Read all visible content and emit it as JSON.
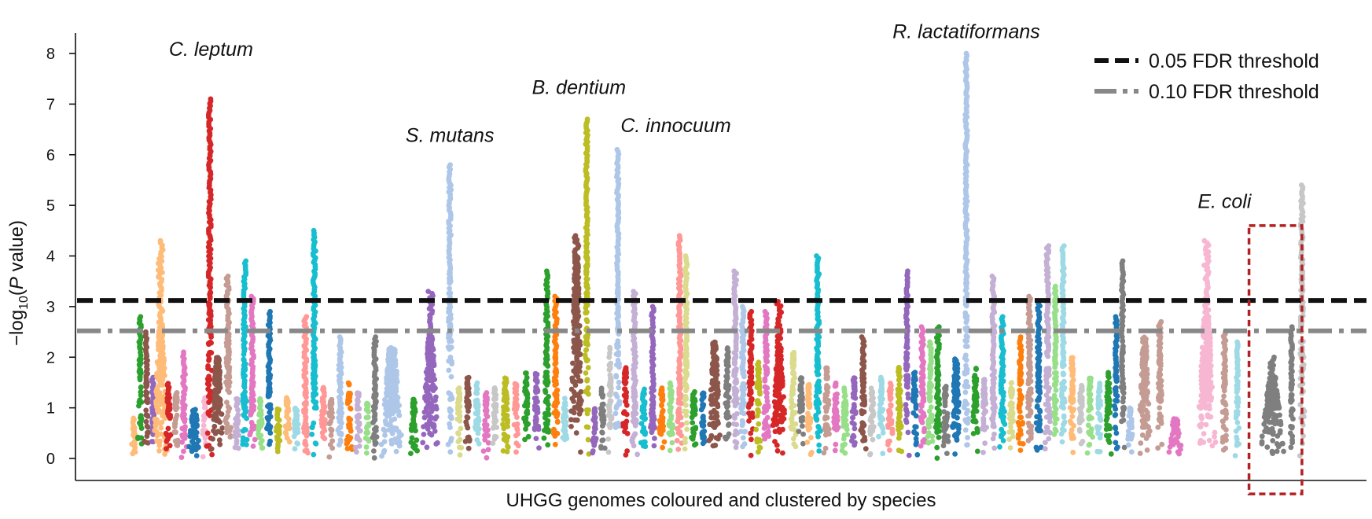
{
  "chart_data": {
    "type": "scatter",
    "subtype": "manhattan",
    "xlabel": "UHGG genomes coloured and clustered by species",
    "ylabel_main": "−log",
    "ylabel_sub": "10",
    "ylabel_open": "(",
    "ylabel_italic": "P",
    "ylabel_close": " value)",
    "ylim": [
      -0.4,
      8.4
    ],
    "yticks": [
      "0",
      "1",
      "2",
      "3",
      "4",
      "5",
      "6",
      "7",
      "8"
    ],
    "grid": false,
    "legend_position": "top-right",
    "thresholds": [
      {
        "name": "0.05 FDR threshold",
        "value": 3.12,
        "color": "#111111",
        "style": "dashed"
      },
      {
        "name": "0.10 FDR threshold",
        "value": 2.52,
        "color": "#888888",
        "style": "dashdot"
      }
    ],
    "highlight_box": {
      "species": "E. coli",
      "x_range": [
        0.909,
        0.95
      ],
      "y_range": [
        -0.7,
        4.6
      ],
      "color": "#b22222"
    },
    "annotations": [
      {
        "text": "C. leptum",
        "x": 0.105,
        "y": 7.95
      },
      {
        "text": "S. mutans",
        "x": 0.29,
        "y": 6.25
      },
      {
        "text": "B. dentium",
        "x": 0.39,
        "y": 7.2
      },
      {
        "text": "C. innocuum",
        "x": 0.465,
        "y": 6.45
      },
      {
        "text": "R. lactatiformans",
        "x": 0.69,
        "y": 8.3
      },
      {
        "text": "E. coli",
        "x": 0.89,
        "y": 4.95
      }
    ],
    "palette": [
      "#1f77b4",
      "#aec7e8",
      "#ff7f0e",
      "#ffbb78",
      "#2ca02c",
      "#98df8a",
      "#d62728",
      "#ff9896",
      "#9467bd",
      "#c5b0d5",
      "#8c564b",
      "#c49c94",
      "#e377c2",
      "#f7b6d2",
      "#7f7f7f",
      "#c7c7c7",
      "#bcbd22",
      "#dbdb8d",
      "#17becf",
      "#9edae5"
    ],
    "clusters": [
      {
        "x": 0.045,
        "w": 0.004,
        "base": 0.8,
        "peak": 0.8,
        "color": "#ffbb78"
      },
      {
        "x": 0.05,
        "w": 0.004,
        "base": 2.3,
        "peak": 2.8,
        "color": "#2ca02c"
      },
      {
        "x": 0.055,
        "w": 0.004,
        "base": 1.5,
        "peak": 2.5,
        "color": "#8c564b"
      },
      {
        "x": 0.06,
        "w": 0.004,
        "base": 1.2,
        "peak": 1.6,
        "color": "#9467bd"
      },
      {
        "x": 0.066,
        "w": 0.012,
        "base": 2.6,
        "peak": 4.3,
        "color": "#ffbb78"
      },
      {
        "x": 0.072,
        "w": 0.005,
        "base": 1.5,
        "peak": 1.5,
        "color": "#d62728"
      },
      {
        "x": 0.078,
        "w": 0.005,
        "base": 1.3,
        "peak": 1.3,
        "color": "#c49c94"
      },
      {
        "x": 0.084,
        "w": 0.005,
        "base": 1.0,
        "peak": 2.1,
        "color": "#e377c2"
      },
      {
        "x": 0.092,
        "w": 0.01,
        "base": 1.0,
        "peak": 1.0,
        "color": "#1f77b4"
      },
      {
        "x": 0.1,
        "w": 0.004,
        "base": 1.2,
        "peak": 1.2,
        "color": "#f7b6d2"
      },
      {
        "x": 0.104,
        "w": 0.005,
        "base": 3.5,
        "peak": 7.1,
        "color": "#d62728"
      },
      {
        "x": 0.11,
        "w": 0.01,
        "base": 2.0,
        "peak": 2.0,
        "color": "#8c564b"
      },
      {
        "x": 0.118,
        "w": 0.006,
        "base": 2.6,
        "peak": 3.6,
        "color": "#c49c94"
      },
      {
        "x": 0.125,
        "w": 0.005,
        "base": 1.2,
        "peak": 1.2,
        "color": "#c5b0d5"
      },
      {
        "x": 0.131,
        "w": 0.005,
        "base": 2.2,
        "peak": 3.9,
        "color": "#17becf"
      },
      {
        "x": 0.137,
        "w": 0.005,
        "base": 1.5,
        "peak": 3.2,
        "color": "#e377c2"
      },
      {
        "x": 0.143,
        "w": 0.005,
        "base": 1.2,
        "peak": 1.2,
        "color": "#98df8a"
      },
      {
        "x": 0.15,
        "w": 0.005,
        "base": 1.6,
        "peak": 2.9,
        "color": "#1f77b4"
      },
      {
        "x": 0.157,
        "w": 0.005,
        "base": 1.0,
        "peak": 1.0,
        "color": "#bcbd22"
      },
      {
        "x": 0.164,
        "w": 0.005,
        "base": 1.2,
        "peak": 1.2,
        "color": "#ffbb78"
      },
      {
        "x": 0.171,
        "w": 0.006,
        "base": 1.0,
        "peak": 1.0,
        "color": "#9edae5"
      },
      {
        "x": 0.178,
        "w": 0.005,
        "base": 1.3,
        "peak": 2.8,
        "color": "#ff9896"
      },
      {
        "x": 0.185,
        "w": 0.005,
        "base": 2.0,
        "peak": 4.5,
        "color": "#17becf"
      },
      {
        "x": 0.192,
        "w": 0.005,
        "base": 1.4,
        "peak": 1.4,
        "color": "#ff9896"
      },
      {
        "x": 0.198,
        "w": 0.005,
        "base": 1.2,
        "peak": 1.2,
        "color": "#c49c94"
      },
      {
        "x": 0.205,
        "w": 0.005,
        "base": 1.5,
        "peak": 2.4,
        "color": "#aec7e8"
      },
      {
        "x": 0.212,
        "w": 0.005,
        "base": 1.5,
        "peak": 1.5,
        "color": "#ff7f0e"
      },
      {
        "x": 0.219,
        "w": 0.005,
        "base": 1.3,
        "peak": 1.3,
        "color": "#c5b0d5"
      },
      {
        "x": 0.226,
        "w": 0.005,
        "base": 1.1,
        "peak": 1.1,
        "color": "#98df8a"
      },
      {
        "x": 0.232,
        "w": 0.005,
        "base": 1.4,
        "peak": 2.4,
        "color": "#7f7f7f"
      },
      {
        "x": 0.245,
        "w": 0.018,
        "base": 2.2,
        "peak": 2.2,
        "color": "#aec7e8"
      },
      {
        "x": 0.262,
        "w": 0.006,
        "base": 1.2,
        "peak": 1.2,
        "color": "#2ca02c"
      },
      {
        "x": 0.275,
        "w": 0.014,
        "base": 2.4,
        "peak": 3.3,
        "color": "#9467bd"
      },
      {
        "x": 0.29,
        "w": 0.005,
        "base": 3.7,
        "peak": 5.8,
        "color": "#aec7e8"
      },
      {
        "x": 0.297,
        "w": 0.005,
        "base": 1.4,
        "peak": 1.4,
        "color": "#dbdb8d"
      },
      {
        "x": 0.304,
        "w": 0.005,
        "base": 1.6,
        "peak": 1.6,
        "color": "#8c564b"
      },
      {
        "x": 0.311,
        "w": 0.005,
        "base": 1.5,
        "peak": 1.5,
        "color": "#9edae5"
      },
      {
        "x": 0.318,
        "w": 0.005,
        "base": 1.3,
        "peak": 1.3,
        "color": "#e377c2"
      },
      {
        "x": 0.325,
        "w": 0.005,
        "base": 1.4,
        "peak": 1.4,
        "color": "#c7c7c7"
      },
      {
        "x": 0.333,
        "w": 0.006,
        "base": 1.6,
        "peak": 1.6,
        "color": "#bcbd22"
      },
      {
        "x": 0.341,
        "w": 0.005,
        "base": 1.5,
        "peak": 1.5,
        "color": "#ff9896"
      },
      {
        "x": 0.349,
        "w": 0.005,
        "base": 1.7,
        "peak": 1.7,
        "color": "#2ca02c"
      },
      {
        "x": 0.357,
        "w": 0.005,
        "base": 1.7,
        "peak": 1.7,
        "color": "#9467bd"
      },
      {
        "x": 0.365,
        "w": 0.005,
        "base": 2.1,
        "peak": 3.7,
        "color": "#2ca02c"
      },
      {
        "x": 0.372,
        "w": 0.005,
        "base": 2.0,
        "peak": 3.2,
        "color": "#ff7f0e"
      },
      {
        "x": 0.379,
        "w": 0.005,
        "base": 1.2,
        "peak": 1.2,
        "color": "#9edae5"
      },
      {
        "x": 0.388,
        "w": 0.01,
        "base": 4.0,
        "peak": 4.4,
        "color": "#8c564b"
      },
      {
        "x": 0.396,
        "w": 0.004,
        "base": 4.2,
        "peak": 6.7,
        "color": "#bcbd22"
      },
      {
        "x": 0.402,
        "w": 0.004,
        "base": 1.0,
        "peak": 1.0,
        "color": "#9467bd"
      },
      {
        "x": 0.408,
        "w": 0.005,
        "base": 1.4,
        "peak": 1.4,
        "color": "#7f7f7f"
      },
      {
        "x": 0.414,
        "w": 0.004,
        "base": 2.2,
        "peak": 2.2,
        "color": "#c7c7c7"
      },
      {
        "x": 0.42,
        "w": 0.004,
        "base": 3.5,
        "peak": 6.1,
        "color": "#aec7e8"
      },
      {
        "x": 0.426,
        "w": 0.005,
        "base": 1.8,
        "peak": 1.8,
        "color": "#d62728"
      },
      {
        "x": 0.433,
        "w": 0.005,
        "base": 1.4,
        "peak": 3.3,
        "color": "#c5b0d5"
      },
      {
        "x": 0.44,
        "w": 0.005,
        "base": 1.4,
        "peak": 1.4,
        "color": "#17becf"
      },
      {
        "x": 0.447,
        "w": 0.005,
        "base": 1.3,
        "peak": 3.0,
        "color": "#9467bd"
      },
      {
        "x": 0.454,
        "w": 0.005,
        "base": 1.4,
        "peak": 1.4,
        "color": "#ff7f0e"
      },
      {
        "x": 0.461,
        "w": 0.005,
        "base": 1.5,
        "peak": 1.5,
        "color": "#98df8a"
      },
      {
        "x": 0.468,
        "w": 0.005,
        "base": 1.7,
        "peak": 4.4,
        "color": "#ff9896"
      },
      {
        "x": 0.473,
        "w": 0.004,
        "base": 2.2,
        "peak": 4.0,
        "color": "#dbdb8d"
      },
      {
        "x": 0.479,
        "w": 0.005,
        "base": 1.4,
        "peak": 1.4,
        "color": "#2ca02c"
      },
      {
        "x": 0.486,
        "w": 0.005,
        "base": 1.3,
        "peak": 1.3,
        "color": "#1f77b4"
      },
      {
        "x": 0.495,
        "w": 0.01,
        "base": 2.3,
        "peak": 2.3,
        "color": "#8c564b"
      },
      {
        "x": 0.505,
        "w": 0.005,
        "base": 2.2,
        "peak": 2.2,
        "color": "#7f7f7f"
      },
      {
        "x": 0.511,
        "w": 0.005,
        "base": 2.0,
        "peak": 3.7,
        "color": "#c5b0d5"
      },
      {
        "x": 0.517,
        "w": 0.005,
        "base": 2.0,
        "peak": 3.0,
        "color": "#aec7e8"
      },
      {
        "x": 0.523,
        "w": 0.005,
        "base": 2.1,
        "peak": 2.9,
        "color": "#d62728"
      },
      {
        "x": 0.529,
        "w": 0.005,
        "base": 1.9,
        "peak": 1.9,
        "color": "#bcbd22"
      },
      {
        "x": 0.535,
        "w": 0.005,
        "base": 2.2,
        "peak": 2.9,
        "color": "#e377c2"
      },
      {
        "x": 0.545,
        "w": 0.012,
        "base": 2.2,
        "peak": 3.1,
        "color": "#d62728"
      },
      {
        "x": 0.556,
        "w": 0.005,
        "base": 2.1,
        "peak": 2.1,
        "color": "#dbdb8d"
      },
      {
        "x": 0.562,
        "w": 0.005,
        "base": 1.6,
        "peak": 1.6,
        "color": "#7f7f7f"
      },
      {
        "x": 0.568,
        "w": 0.005,
        "base": 1.5,
        "peak": 1.5,
        "color": "#ffbb78"
      },
      {
        "x": 0.575,
        "w": 0.005,
        "base": 2.0,
        "peak": 4.0,
        "color": "#17becf"
      },
      {
        "x": 0.582,
        "w": 0.005,
        "base": 1.8,
        "peak": 1.8,
        "color": "#c49c94"
      },
      {
        "x": 0.589,
        "w": 0.005,
        "base": 1.5,
        "peak": 1.5,
        "color": "#e377c2"
      },
      {
        "x": 0.596,
        "w": 0.005,
        "base": 1.4,
        "peak": 1.4,
        "color": "#98df8a"
      },
      {
        "x": 0.603,
        "w": 0.005,
        "base": 1.6,
        "peak": 1.6,
        "color": "#9467bd"
      },
      {
        "x": 0.61,
        "w": 0.005,
        "base": 1.7,
        "peak": 2.4,
        "color": "#8c564b"
      },
      {
        "x": 0.617,
        "w": 0.005,
        "base": 1.4,
        "peak": 1.4,
        "color": "#c7c7c7"
      },
      {
        "x": 0.624,
        "w": 0.005,
        "base": 1.6,
        "peak": 1.6,
        "color": "#9edae5"
      },
      {
        "x": 0.631,
        "w": 0.005,
        "base": 1.5,
        "peak": 1.5,
        "color": "#ff9896"
      },
      {
        "x": 0.638,
        "w": 0.005,
        "base": 1.8,
        "peak": 1.8,
        "color": "#bcbd22"
      },
      {
        "x": 0.644,
        "w": 0.004,
        "base": 2.3,
        "peak": 3.7,
        "color": "#9467bd"
      },
      {
        "x": 0.65,
        "w": 0.005,
        "base": 1.7,
        "peak": 1.7,
        "color": "#1f77b4"
      },
      {
        "x": 0.656,
        "w": 0.005,
        "base": 1.6,
        "peak": 2.6,
        "color": "#e377c2"
      },
      {
        "x": 0.662,
        "w": 0.005,
        "base": 1.8,
        "peak": 2.3,
        "color": "#98df8a"
      },
      {
        "x": 0.668,
        "w": 0.005,
        "base": 1.7,
        "peak": 2.6,
        "color": "#2ca02c"
      },
      {
        "x": 0.674,
        "w": 0.005,
        "base": 1.5,
        "peak": 1.5,
        "color": "#7f7f7f"
      },
      {
        "x": 0.682,
        "w": 0.008,
        "base": 2.0,
        "peak": 2.0,
        "color": "#1f77b4"
      },
      {
        "x": 0.69,
        "w": 0.004,
        "base": 3.6,
        "peak": 8.0,
        "color": "#aec7e8"
      },
      {
        "x": 0.697,
        "w": 0.005,
        "base": 1.8,
        "peak": 1.8,
        "color": "#2ca02c"
      },
      {
        "x": 0.704,
        "w": 0.005,
        "base": 1.6,
        "peak": 1.6,
        "color": "#c5b0d5"
      },
      {
        "x": 0.711,
        "w": 0.005,
        "base": 1.6,
        "peak": 3.6,
        "color": "#c5b0d5"
      },
      {
        "x": 0.718,
        "w": 0.005,
        "base": 2.0,
        "peak": 2.8,
        "color": "#17becf"
      },
      {
        "x": 0.725,
        "w": 0.005,
        "base": 1.5,
        "peak": 1.5,
        "color": "#dbdb8d"
      },
      {
        "x": 0.732,
        "w": 0.005,
        "base": 1.7,
        "peak": 2.4,
        "color": "#ff7f0e"
      },
      {
        "x": 0.739,
        "w": 0.005,
        "base": 1.9,
        "peak": 3.2,
        "color": "#c49c94"
      },
      {
        "x": 0.746,
        "w": 0.005,
        "base": 1.8,
        "peak": 3.1,
        "color": "#1f77b4"
      },
      {
        "x": 0.753,
        "w": 0.005,
        "base": 2.4,
        "peak": 4.2,
        "color": "#c5b0d5"
      },
      {
        "x": 0.759,
        "w": 0.004,
        "base": 2.0,
        "peak": 3.4,
        "color": "#98df8a"
      },
      {
        "x": 0.765,
        "w": 0.004,
        "base": 2.2,
        "peak": 4.2,
        "color": "#9edae5"
      },
      {
        "x": 0.772,
        "w": 0.005,
        "base": 2.0,
        "peak": 2.0,
        "color": "#ffbb78"
      },
      {
        "x": 0.779,
        "w": 0.005,
        "base": 1.5,
        "peak": 1.5,
        "color": "#c7c7c7"
      },
      {
        "x": 0.786,
        "w": 0.005,
        "base": 1.6,
        "peak": 1.6,
        "color": "#98df8a"
      },
      {
        "x": 0.793,
        "w": 0.005,
        "base": 1.5,
        "peak": 1.5,
        "color": "#9edae5"
      },
      {
        "x": 0.8,
        "w": 0.005,
        "base": 1.7,
        "peak": 1.7,
        "color": "#2ca02c"
      },
      {
        "x": 0.806,
        "w": 0.004,
        "base": 2.0,
        "peak": 2.8,
        "color": "#1f77b4"
      },
      {
        "x": 0.811,
        "w": 0.004,
        "base": 2.4,
        "peak": 3.9,
        "color": "#7f7f7f"
      },
      {
        "x": 0.817,
        "w": 0.005,
        "base": 1.0,
        "peak": 1.0,
        "color": "#aec7e8"
      },
      {
        "x": 0.828,
        "w": 0.01,
        "base": 2.4,
        "peak": 2.4,
        "color": "#c49c94"
      },
      {
        "x": 0.84,
        "w": 0.005,
        "base": 2.1,
        "peak": 2.7,
        "color": "#c49c94"
      },
      {
        "x": 0.852,
        "w": 0.012,
        "base": 0.8,
        "peak": 0.8,
        "color": "#e377c2"
      },
      {
        "x": 0.876,
        "w": 0.016,
        "base": 2.8,
        "peak": 4.3,
        "color": "#f7b6d2"
      },
      {
        "x": 0.89,
        "w": 0.005,
        "base": 1.6,
        "peak": 2.5,
        "color": "#c49c94"
      },
      {
        "x": 0.9,
        "w": 0.004,
        "base": 1.6,
        "peak": 2.3,
        "color": "#9edae5"
      },
      {
        "x": 0.927,
        "w": 0.02,
        "base": 1.6,
        "peak": 2.0,
        "color": "#7f7f7f"
      },
      {
        "x": 0.942,
        "w": 0.004,
        "base": 1.5,
        "peak": 2.6,
        "color": "#7f7f7f"
      },
      {
        "x": 0.95,
        "w": 0.005,
        "base": 3.7,
        "peak": 5.4,
        "color": "#c7c7c7"
      }
    ]
  }
}
